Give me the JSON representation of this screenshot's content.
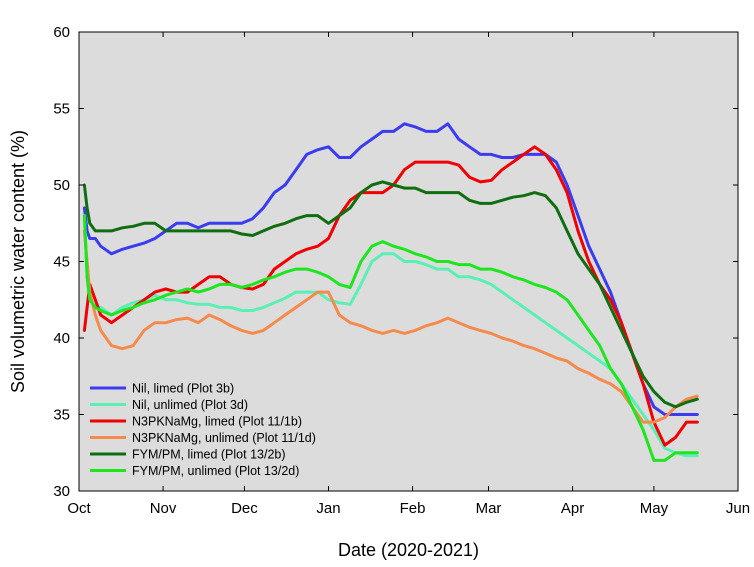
{
  "chart_data": {
    "type": "line",
    "title": "",
    "xlabel": "Date (2020-2021)",
    "ylabel": "Soil volumetric water content (%)",
    "x_unit": "day offset from Oct 1",
    "xlim": [
      0,
      243
    ],
    "ylim": [
      30,
      60
    ],
    "x_ticks": [
      {
        "value": 0,
        "label": "Oct"
      },
      {
        "value": 31,
        "label": "Nov"
      },
      {
        "value": 61,
        "label": "Dec"
      },
      {
        "value": 92,
        "label": "Jan"
      },
      {
        "value": 123,
        "label": "Feb"
      },
      {
        "value": 151,
        "label": "Mar"
      },
      {
        "value": 182,
        "label": "Apr"
      },
      {
        "value": 212,
        "label": "May"
      },
      {
        "value": 243,
        "label": "Jun"
      }
    ],
    "y_ticks": [
      30,
      35,
      40,
      45,
      50,
      55,
      60
    ],
    "grid": false,
    "background": "#dcdcdc",
    "legend_position": "bottom-left",
    "series": [
      {
        "name": "Nil, limed (Plot 3b)",
        "color": "#3b3bf0",
        "x": [
          2,
          3,
          4,
          6,
          8,
          12,
          16,
          20,
          24,
          28,
          32,
          36,
          40,
          44,
          48,
          52,
          56,
          60,
          64,
          68,
          72,
          76,
          80,
          84,
          88,
          92,
          96,
          100,
          104,
          108,
          112,
          116,
          120,
          124,
          128,
          132,
          136,
          140,
          144,
          148,
          152,
          156,
          160,
          164,
          168,
          172,
          176,
          180,
          184,
          188,
          192,
          196,
          200,
          204,
          208,
          212,
          216,
          220,
          224,
          228
        ],
        "values": [
          48.5,
          47.0,
          46.5,
          46.5,
          46.0,
          45.5,
          45.8,
          46.0,
          46.2,
          46.5,
          47.0,
          47.5,
          47.5,
          47.2,
          47.5,
          47.5,
          47.5,
          47.5,
          47.8,
          48.5,
          49.5,
          50.0,
          51.0,
          52.0,
          52.3,
          52.5,
          51.8,
          51.8,
          52.5,
          53.0,
          53.5,
          53.5,
          54.0,
          53.8,
          53.5,
          53.5,
          54.0,
          53.0,
          52.5,
          52.0,
          52.0,
          51.8,
          51.8,
          52.0,
          52.0,
          52.0,
          51.5,
          50.0,
          48.0,
          46.0,
          44.5,
          43.0,
          41.0,
          39.0,
          37.0,
          35.5,
          35.0,
          35.0,
          35.0,
          35.0
        ]
      },
      {
        "name": "Nil, unlimed (Plot 3d)",
        "color": "#5af0b4",
        "x": [
          2,
          3,
          4,
          6,
          8,
          12,
          16,
          20,
          24,
          28,
          32,
          36,
          40,
          44,
          48,
          52,
          56,
          60,
          64,
          68,
          72,
          76,
          80,
          84,
          88,
          92,
          96,
          100,
          104,
          108,
          112,
          116,
          120,
          124,
          128,
          132,
          136,
          140,
          144,
          148,
          152,
          156,
          160,
          164,
          168,
          172,
          176,
          180,
          184,
          188,
          192,
          196,
          200,
          204,
          208,
          212,
          216,
          220,
          224,
          228
        ],
        "values": [
          48.0,
          44.0,
          42.5,
          42.0,
          42.0,
          41.5,
          42.0,
          42.3,
          42.5,
          42.8,
          42.5,
          42.5,
          42.3,
          42.2,
          42.2,
          42.0,
          42.0,
          41.8,
          41.8,
          42.0,
          42.3,
          42.6,
          43.0,
          43.0,
          43.0,
          42.5,
          42.3,
          42.2,
          43.5,
          45.0,
          45.5,
          45.5,
          45.0,
          45.0,
          44.8,
          44.5,
          44.5,
          44.0,
          44.0,
          43.8,
          43.5,
          43.0,
          42.5,
          42.0,
          41.5,
          41.0,
          40.5,
          40.0,
          39.5,
          39.0,
          38.5,
          38.0,
          37.0,
          36.0,
          35.0,
          34.0,
          32.8,
          32.5,
          32.3,
          32.3
        ]
      },
      {
        "name": "N3PKNaMg, limed (Plot 11/1b)",
        "color": "#f00000",
        "x": [
          2,
          3,
          4,
          6,
          8,
          12,
          16,
          20,
          24,
          28,
          32,
          36,
          40,
          44,
          48,
          52,
          56,
          60,
          64,
          68,
          72,
          76,
          80,
          84,
          88,
          92,
          96,
          100,
          104,
          108,
          112,
          116,
          120,
          124,
          128,
          132,
          136,
          140,
          144,
          148,
          152,
          156,
          160,
          164,
          168,
          172,
          176,
          180,
          184,
          188,
          192,
          196,
          200,
          204,
          208,
          212,
          216,
          220,
          224,
          228
        ],
        "values": [
          40.5,
          42.0,
          43.5,
          42.5,
          41.5,
          41.0,
          41.5,
          42.0,
          42.5,
          43.0,
          43.2,
          43.0,
          43.0,
          43.5,
          44.0,
          44.0,
          43.5,
          43.3,
          43.2,
          43.5,
          44.5,
          45.0,
          45.5,
          45.8,
          46.0,
          46.5,
          48.0,
          49.0,
          49.5,
          49.5,
          49.5,
          50.0,
          51.0,
          51.5,
          51.5,
          51.5,
          51.5,
          51.3,
          50.5,
          50.2,
          50.3,
          51.0,
          51.5,
          52.0,
          52.5,
          52.0,
          51.0,
          49.5,
          47.0,
          45.0,
          43.5,
          42.5,
          41.0,
          39.0,
          37.0,
          34.5,
          33.0,
          33.5,
          34.5,
          34.5
        ]
      },
      {
        "name": "N3PKNaMg, unlimed (Plot 11/1d)",
        "color": "#f58a4c",
        "x": [
          2,
          3,
          4,
          6,
          8,
          12,
          16,
          20,
          24,
          28,
          32,
          36,
          40,
          44,
          48,
          52,
          56,
          60,
          64,
          68,
          72,
          76,
          80,
          84,
          88,
          92,
          96,
          100,
          104,
          108,
          112,
          116,
          120,
          124,
          128,
          132,
          136,
          140,
          144,
          148,
          152,
          156,
          160,
          164,
          168,
          172,
          176,
          180,
          184,
          188,
          192,
          196,
          200,
          204,
          208,
          212,
          216,
          220,
          224,
          228
        ],
        "values": [
          47.0,
          45.0,
          43.0,
          41.5,
          40.5,
          39.5,
          39.3,
          39.5,
          40.5,
          41.0,
          41.0,
          41.2,
          41.3,
          41.0,
          41.5,
          41.2,
          40.8,
          40.5,
          40.3,
          40.5,
          41.0,
          41.5,
          42.0,
          42.5,
          43.0,
          43.0,
          41.5,
          41.0,
          40.8,
          40.5,
          40.3,
          40.5,
          40.3,
          40.5,
          40.8,
          41.0,
          41.3,
          41.0,
          40.7,
          40.5,
          40.3,
          40.0,
          39.8,
          39.5,
          39.3,
          39.0,
          38.7,
          38.5,
          38.0,
          37.7,
          37.3,
          37.0,
          36.5,
          35.5,
          34.5,
          34.5,
          34.8,
          35.5,
          36.0,
          36.2
        ]
      },
      {
        "name": "FYM/PM, limed (Plot 13/2b)",
        "color": "#0f6e0f",
        "x": [
          2,
          3,
          4,
          6,
          8,
          12,
          16,
          20,
          24,
          28,
          32,
          36,
          40,
          44,
          48,
          52,
          56,
          60,
          64,
          68,
          72,
          76,
          80,
          84,
          88,
          92,
          96,
          100,
          104,
          108,
          112,
          116,
          120,
          124,
          128,
          132,
          136,
          140,
          144,
          148,
          152,
          156,
          160,
          164,
          168,
          172,
          176,
          180,
          184,
          188,
          192,
          196,
          200,
          204,
          208,
          212,
          216,
          220,
          224,
          228
        ],
        "values": [
          50.0,
          48.5,
          47.5,
          47.0,
          47.0,
          47.0,
          47.2,
          47.3,
          47.5,
          47.5,
          47.0,
          47.0,
          47.0,
          47.0,
          47.0,
          47.0,
          47.0,
          46.8,
          46.7,
          47.0,
          47.3,
          47.5,
          47.8,
          48.0,
          48.0,
          47.5,
          48.0,
          48.5,
          49.5,
          50.0,
          50.2,
          50.0,
          49.8,
          49.8,
          49.5,
          49.5,
          49.5,
          49.5,
          49.0,
          48.8,
          48.8,
          49.0,
          49.2,
          49.3,
          49.5,
          49.3,
          48.5,
          47.0,
          45.5,
          44.5,
          43.5,
          42.0,
          40.5,
          39.0,
          37.5,
          36.5,
          35.8,
          35.5,
          35.8,
          36.0
        ]
      },
      {
        "name": "FYM/PM, unlimed (Plot 13/2d)",
        "color": "#1ee61e",
        "x": [
          2,
          3,
          4,
          6,
          8,
          12,
          16,
          20,
          24,
          28,
          32,
          36,
          40,
          44,
          48,
          52,
          56,
          60,
          64,
          68,
          72,
          76,
          80,
          84,
          88,
          92,
          96,
          100,
          104,
          108,
          112,
          116,
          120,
          124,
          128,
          132,
          136,
          140,
          144,
          148,
          152,
          156,
          160,
          164,
          168,
          172,
          176,
          180,
          184,
          188,
          192,
          196,
          200,
          204,
          208,
          212,
          216,
          220,
          224,
          228
        ],
        "values": [
          48.0,
          44.0,
          42.5,
          42.0,
          41.8,
          41.5,
          41.8,
          42.0,
          42.3,
          42.5,
          42.8,
          43.0,
          43.2,
          43.0,
          43.2,
          43.5,
          43.5,
          43.3,
          43.5,
          43.8,
          44.0,
          44.3,
          44.5,
          44.5,
          44.3,
          44.0,
          43.5,
          43.3,
          45.0,
          46.0,
          46.3,
          46.0,
          45.8,
          45.5,
          45.3,
          45.0,
          45.0,
          44.8,
          44.8,
          44.5,
          44.5,
          44.3,
          44.0,
          43.8,
          43.5,
          43.3,
          43.0,
          42.5,
          41.5,
          40.5,
          39.5,
          38.0,
          37.0,
          35.5,
          34.0,
          32.0,
          32.0,
          32.5,
          32.5,
          32.5
        ]
      }
    ]
  }
}
